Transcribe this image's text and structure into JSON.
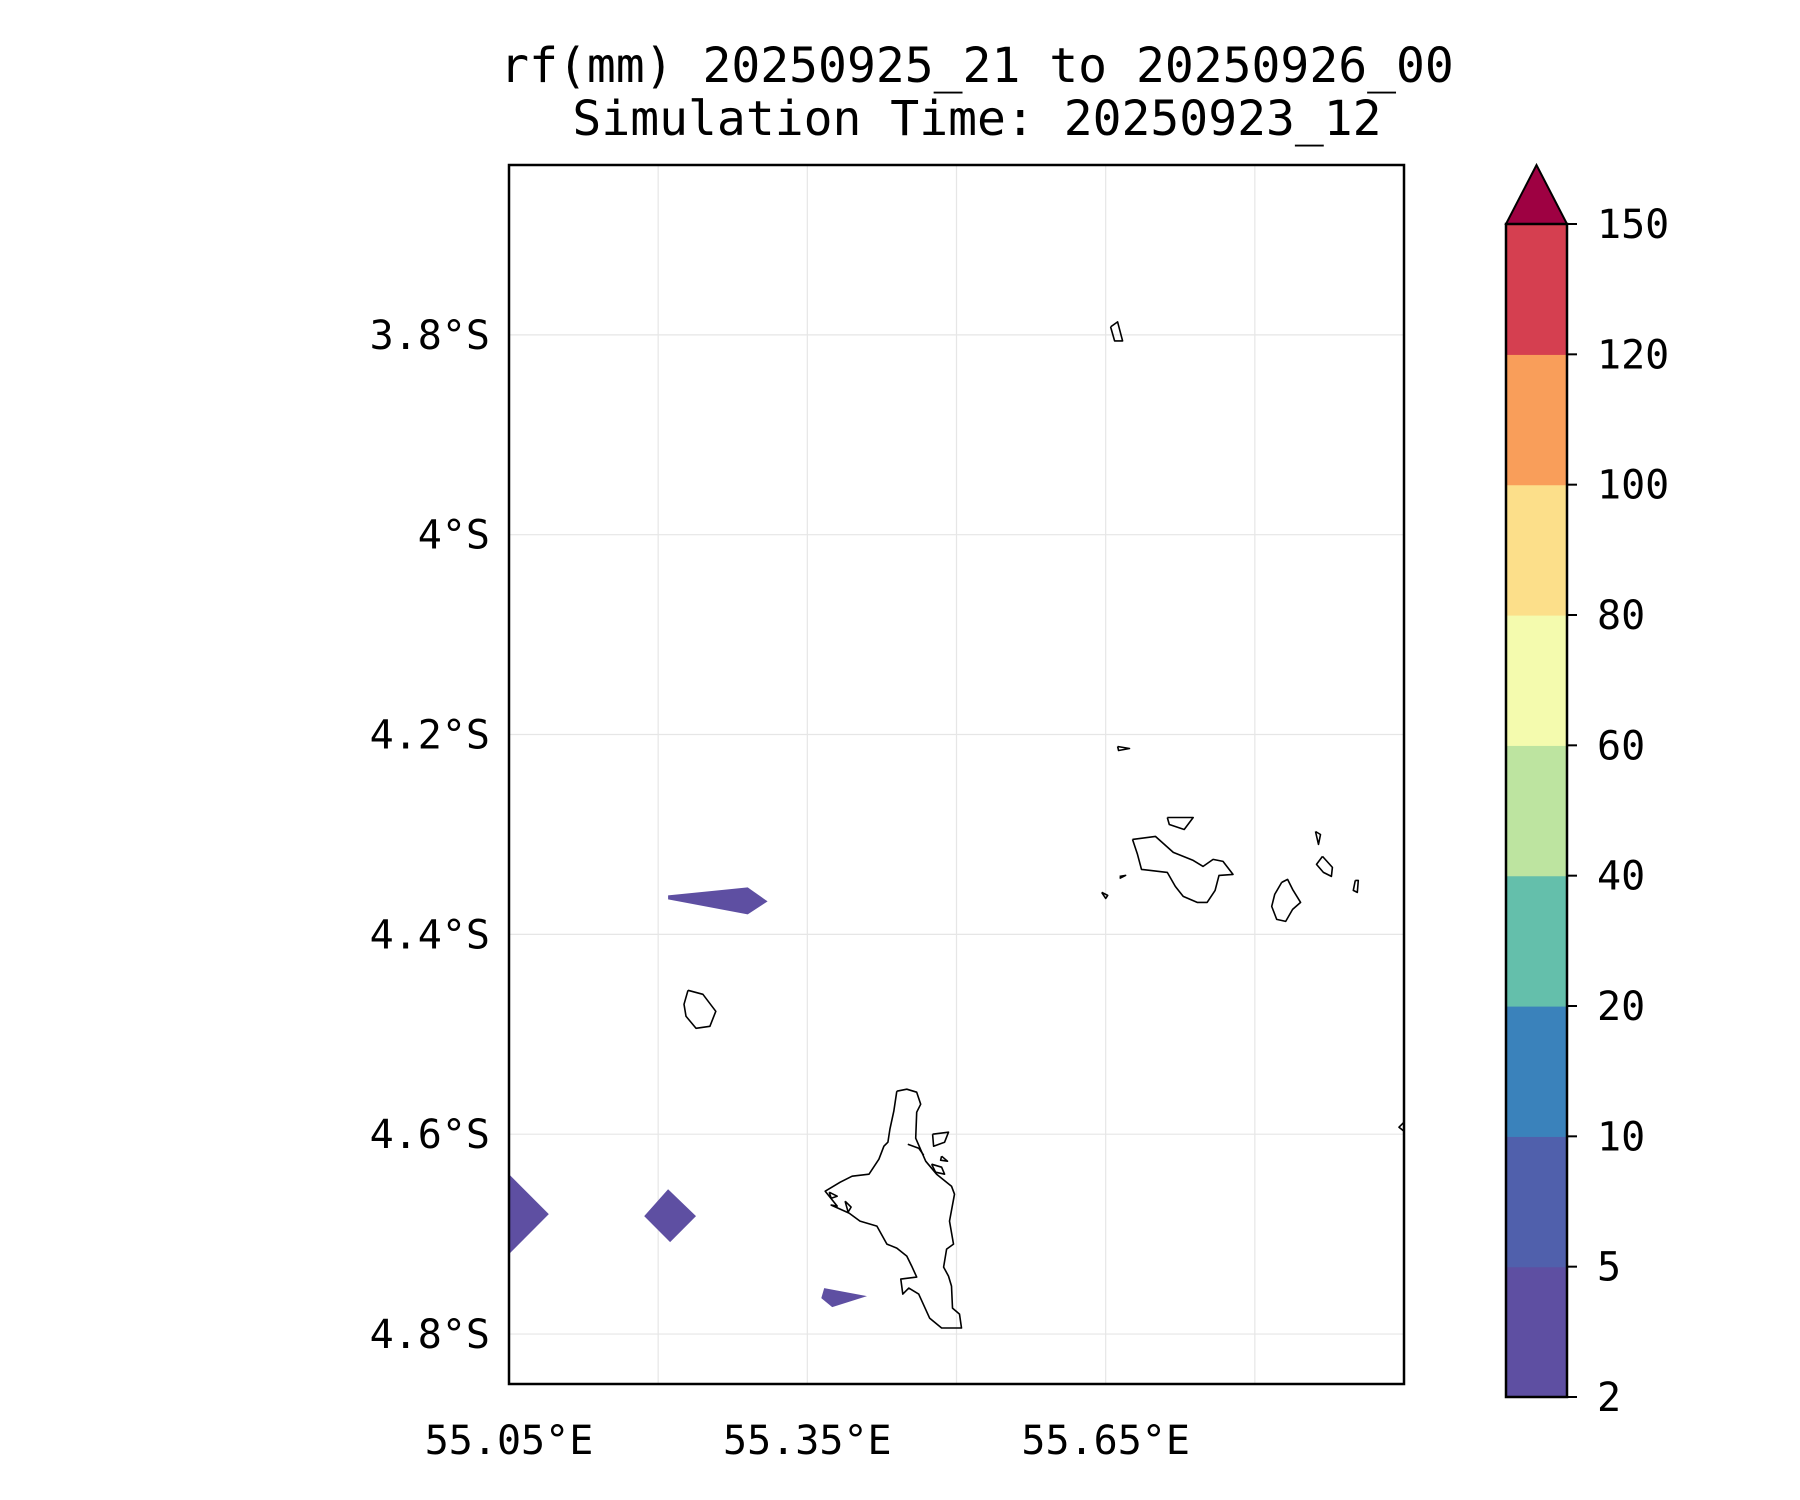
{
  "title": {
    "line1": "rf(mm) 20250925_21 to 20250926_00",
    "line2": "Simulation Time: 20250923_12"
  },
  "map": {
    "lon_range": [
      55.05,
      55.95
    ],
    "lat_range": [
      -4.85,
      -3.63
    ],
    "x_ticks": [
      {
        "value": 55.05,
        "label": "55.05°E"
      },
      {
        "value": 55.35,
        "label": "55.35°E"
      },
      {
        "value": 55.65,
        "label": "55.65°E"
      }
    ],
    "x_grid": [
      55.05,
      55.2,
      55.35,
      55.5,
      55.65,
      55.8,
      55.95
    ],
    "y_ticks": [
      {
        "value": -3.8,
        "label": "3.8°S"
      },
      {
        "value": -4.0,
        "label": "4°S"
      },
      {
        "value": -4.2,
        "label": "4.2°S"
      },
      {
        "value": -4.4,
        "label": "4.4°S"
      },
      {
        "value": -4.6,
        "label": "4.6°S"
      },
      {
        "value": -4.8,
        "label": "4.8°S"
      }
    ],
    "grid": true,
    "rain_areas": [
      {
        "category": "2-5",
        "points": [
          [
            55.21,
            -4.361
          ],
          [
            55.29,
            -4.353
          ],
          [
            55.31,
            -4.367
          ],
          [
            55.29,
            -4.38
          ],
          [
            55.21,
            -4.365
          ]
        ]
      },
      {
        "category": "2-5",
        "points": [
          [
            55.05,
            -4.64
          ],
          [
            55.09,
            -4.68
          ],
          [
            55.05,
            -4.72
          ]
        ]
      },
      {
        "category": "2-5",
        "points": [
          [
            55.21,
            -4.655
          ],
          [
            55.238,
            -4.682
          ],
          [
            55.212,
            -4.708
          ],
          [
            55.186,
            -4.682
          ]
        ]
      },
      {
        "category": "2-5",
        "points": [
          [
            55.367,
            -4.754
          ],
          [
            55.41,
            -4.762
          ],
          [
            55.375,
            -4.773
          ],
          [
            55.364,
            -4.764
          ]
        ]
      }
    ],
    "coastlines": [
      [
        [
          55.655,
          -3.792
        ],
        [
          55.662,
          -3.787
        ],
        [
          55.667,
          -3.806
        ],
        [
          55.659,
          -3.806
        ],
        [
          55.655,
          -3.792
        ]
      ],
      [
        [
          55.662,
          -4.212
        ],
        [
          55.674,
          -4.214
        ],
        [
          55.663,
          -4.216
        ],
        [
          55.662,
          -4.212
        ]
      ],
      [
        [
          55.712,
          -4.283
        ],
        [
          55.738,
          -4.283
        ],
        [
          55.729,
          -4.295
        ],
        [
          55.714,
          -4.29
        ],
        [
          55.712,
          -4.283
        ]
      ],
      [
        [
          55.677,
          -4.305
        ],
        [
          55.7,
          -4.302
        ],
        [
          55.718,
          -4.318
        ],
        [
          55.738,
          -4.326
        ],
        [
          55.748,
          -4.332
        ],
        [
          55.758,
          -4.325
        ],
        [
          55.768,
          -4.327
        ],
        [
          55.778,
          -4.34
        ],
        [
          55.764,
          -4.341
        ],
        [
          55.76,
          -4.356
        ],
        [
          55.752,
          -4.368
        ],
        [
          55.742,
          -4.368
        ],
        [
          55.728,
          -4.362
        ],
        [
          55.72,
          -4.352
        ],
        [
          55.712,
          -4.338
        ],
        [
          55.686,
          -4.335
        ],
        [
          55.682,
          -4.32
        ],
        [
          55.677,
          -4.305
        ]
      ],
      [
        [
          55.664,
          -4.342
        ],
        [
          55.67,
          -4.341
        ],
        [
          55.664,
          -4.344
        ]
      ],
      [
        [
          55.646,
          -4.358
        ],
        [
          55.652,
          -4.361
        ],
        [
          55.65,
          -4.364
        ],
        [
          55.646,
          -4.358
        ]
      ],
      [
        [
          55.861,
          -4.297
        ],
        [
          55.866,
          -4.3
        ],
        [
          55.864,
          -4.31
        ],
        [
          55.861,
          -4.297
        ]
      ],
      [
        [
          55.868,
          -4.322
        ],
        [
          55.878,
          -4.333
        ],
        [
          55.877,
          -4.342
        ],
        [
          55.869,
          -4.338
        ],
        [
          55.862,
          -4.33
        ],
        [
          55.868,
          -4.322
        ]
      ],
      [
        [
          55.901,
          -4.346
        ],
        [
          55.904,
          -4.346
        ],
        [
          55.903,
          -4.358
        ],
        [
          55.899,
          -4.356
        ],
        [
          55.901,
          -4.346
        ]
      ],
      [
        [
          55.827,
          -4.348
        ],
        [
          55.833,
          -4.345
        ],
        [
          55.838,
          -4.355
        ],
        [
          55.846,
          -4.368
        ],
        [
          55.838,
          -4.375
        ],
        [
          55.831,
          -4.387
        ],
        [
          55.822,
          -4.385
        ],
        [
          55.817,
          -4.372
        ],
        [
          55.82,
          -4.36
        ],
        [
          55.827,
          -4.348
        ]
      ],
      [
        [
          55.95,
          -4.588
        ],
        [
          55.945,
          -4.593
        ],
        [
          55.95,
          -4.597
        ]
      ],
      [
        [
          55.23,
          -4.456
        ],
        [
          55.245,
          -4.46
        ],
        [
          55.258,
          -4.477
        ],
        [
          55.252,
          -4.492
        ],
        [
          55.238,
          -4.494
        ],
        [
          55.228,
          -4.482
        ],
        [
          55.226,
          -4.47
        ],
        [
          55.23,
          -4.456
        ]
      ],
      [
        [
          55.44,
          -4.557
        ],
        [
          55.45,
          -4.555
        ],
        [
          55.46,
          -4.558
        ],
        [
          55.464,
          -4.57
        ],
        [
          55.46,
          -4.578
        ],
        [
          55.459,
          -4.604
        ],
        [
          55.469,
          -4.627
        ],
        [
          55.48,
          -4.64
        ],
        [
          55.495,
          -4.652
        ],
        [
          55.498,
          -4.66
        ],
        [
          55.493,
          -4.687
        ],
        [
          55.497,
          -4.71
        ],
        [
          55.49,
          -4.715
        ],
        [
          55.487,
          -4.733
        ],
        [
          55.492,
          -4.742
        ],
        [
          55.495,
          -4.752
        ],
        [
          55.496,
          -4.774
        ],
        [
          55.503,
          -4.78
        ],
        [
          55.505,
          -4.794
        ],
        [
          55.485,
          -4.794
        ],
        [
          55.473,
          -4.784
        ],
        [
          55.462,
          -4.76
        ],
        [
          55.452,
          -4.754
        ],
        [
          55.446,
          -4.76
        ],
        [
          55.444,
          -4.745
        ],
        [
          55.46,
          -4.743
        ],
        [
          55.455,
          -4.732
        ],
        [
          55.45,
          -4.722
        ],
        [
          55.44,
          -4.714
        ],
        [
          55.43,
          -4.71
        ],
        [
          55.42,
          -4.692
        ],
        [
          55.403,
          -4.687
        ],
        [
          55.392,
          -4.679
        ],
        [
          55.374,
          -4.671
        ],
        [
          55.38,
          -4.672
        ],
        [
          55.368,
          -4.657
        ],
        [
          55.383,
          -4.648
        ],
        [
          55.395,
          -4.642
        ],
        [
          55.412,
          -4.64
        ],
        [
          55.422,
          -4.625
        ],
        [
          55.427,
          -4.612
        ],
        [
          55.431,
          -4.608
        ],
        [
          55.433,
          -4.595
        ],
        [
          55.437,
          -4.577
        ],
        [
          55.44,
          -4.557
        ]
      ],
      [
        [
          55.451,
          -4.61
        ],
        [
          55.462,
          -4.614
        ],
        [
          55.467,
          -4.621
        ]
      ],
      [
        [
          55.476,
          -4.6
        ],
        [
          55.492,
          -4.598
        ],
        [
          55.488,
          -4.608
        ],
        [
          55.477,
          -4.612
        ],
        [
          55.476,
          -4.6
        ]
      ],
      [
        [
          55.485,
          -4.622
        ],
        [
          55.491,
          -4.627
        ],
        [
          55.484,
          -4.626
        ],
        [
          55.485,
          -4.622
        ]
      ],
      [
        [
          55.475,
          -4.63
        ],
        [
          55.485,
          -4.633
        ],
        [
          55.488,
          -4.64
        ],
        [
          55.479,
          -4.638
        ],
        [
          55.475,
          -4.63
        ]
      ],
      [
        [
          55.372,
          -4.658
        ],
        [
          55.38,
          -4.662
        ],
        [
          55.374,
          -4.664
        ],
        [
          55.372,
          -4.658
        ]
      ],
      [
        [
          55.388,
          -4.667
        ],
        [
          55.394,
          -4.673
        ],
        [
          55.391,
          -4.678
        ],
        [
          55.388,
          -4.667
        ]
      ]
    ]
  },
  "colorbar": {
    "levels": [
      2,
      5,
      10,
      20,
      40,
      60,
      80,
      100,
      120,
      150
    ],
    "tick_labels": [
      "2",
      "5",
      "10",
      "20",
      "40",
      "60",
      "80",
      "100",
      "120",
      "150"
    ],
    "colors": [
      "#5e4fa2",
      "#5060ac",
      "#3a82bb",
      "#64bfab",
      "#bde4a0",
      "#f4fbae",
      "#fcdf8a",
      "#f99e5a",
      "#d53f50"
    ],
    "extend_color": "#9e0142",
    "extend": "max"
  }
}
